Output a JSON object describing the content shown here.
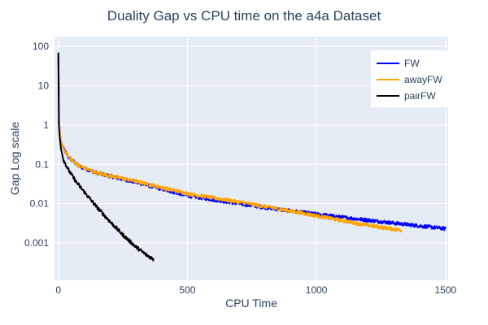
{
  "chart_data": {
    "type": "line",
    "title": "Duality Gap vs CPU time on the a4a Dataset",
    "xlabel": "CPU Time",
    "ylabel": "Gap Log scale",
    "xlim": [
      -15,
      1510
    ],
    "ylim_log10": [
      -3.95,
      2.25
    ],
    "y_scale": "log",
    "grid": true,
    "legend_position": "top-right",
    "colors": {
      "plot_bg": "#e5ecf6",
      "grid": "#ffffff",
      "text": "#2a3f5f"
    },
    "x_ticks": [
      {
        "value": 0,
        "label": "0"
      },
      {
        "value": 500,
        "label": "500"
      },
      {
        "value": 1000,
        "label": "1000"
      },
      {
        "value": 1500,
        "label": "1500"
      }
    ],
    "y_ticks": [
      {
        "value": 100,
        "label": "100"
      },
      {
        "value": 10,
        "label": "10"
      },
      {
        "value": 1,
        "label": "1"
      },
      {
        "value": 0.1,
        "label": "0.1"
      },
      {
        "value": 0.01,
        "label": "0.01"
      },
      {
        "value": 0.001,
        "label": "0.001"
      }
    ],
    "series": [
      {
        "name": "FW",
        "color": "#0000ff",
        "x": [
          0,
          3,
          6,
          10,
          20,
          40,
          80,
          150,
          300,
          500,
          700,
          900,
          1100,
          1300,
          1500
        ],
        "y": [
          60,
          1.2,
          0.6,
          0.4,
          0.25,
          0.15,
          0.09,
          0.06,
          0.035,
          0.016,
          0.01,
          0.0065,
          0.0045,
          0.0032,
          0.0023
        ]
      },
      {
        "name": "awayFW",
        "color": "#ffa500",
        "x": [
          0,
          3,
          6,
          10,
          20,
          40,
          80,
          150,
          300,
          500,
          700,
          900,
          1100,
          1200,
          1330
        ],
        "y": [
          60,
          1.2,
          0.6,
          0.4,
          0.25,
          0.15,
          0.09,
          0.06,
          0.037,
          0.018,
          0.011,
          0.0065,
          0.0037,
          0.0028,
          0.0021
        ]
      },
      {
        "name": "pairFW",
        "color": "#000000",
        "x": [
          0,
          2,
          5,
          10,
          20,
          40,
          70,
          100,
          150,
          200,
          250,
          300,
          340,
          370
        ],
        "y": [
          70,
          1.0,
          0.5,
          0.25,
          0.13,
          0.07,
          0.035,
          0.02,
          0.008,
          0.0035,
          0.0016,
          0.0008,
          0.0005,
          0.00038
        ]
      }
    ]
  }
}
